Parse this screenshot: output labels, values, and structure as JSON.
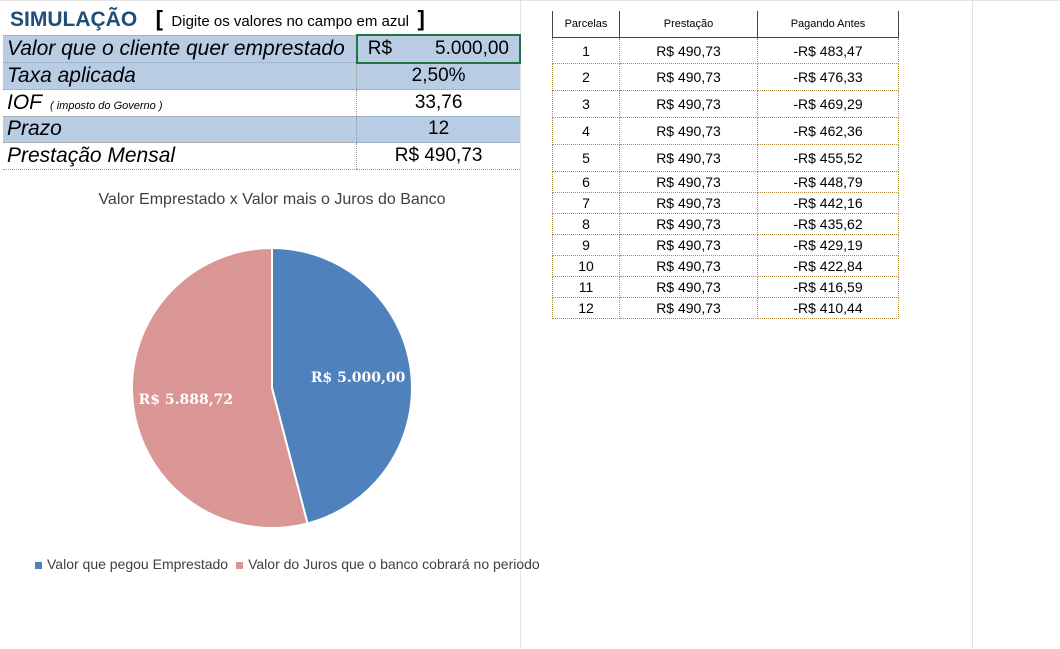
{
  "header": {
    "title": "SIMULAÇÃO",
    "bracket_open": "[",
    "instruction": "Digite os valores no campo em azul",
    "bracket_close": "]"
  },
  "simulation": {
    "rows": [
      {
        "label": "Valor que o cliente quer emprestado",
        "currency": "R$",
        "value": "5.000,00"
      },
      {
        "label": "Taxa aplicada",
        "value": "2,50%"
      },
      {
        "label": "IOF",
        "note": "( imposto do Governo )",
        "value": "33,76"
      },
      {
        "label": "Prazo",
        "value": "12"
      },
      {
        "label": "Prestação Mensal",
        "value": "R$ 490,73"
      }
    ]
  },
  "installments": {
    "headers": [
      "Parcelas",
      "Prestação",
      "Pagando Antes"
    ],
    "rows": [
      [
        "1",
        "R$ 490,73",
        "-R$ 483,47"
      ],
      [
        "2",
        "R$ 490,73",
        "-R$ 476,33"
      ],
      [
        "3",
        "R$ 490,73",
        "-R$ 469,29"
      ],
      [
        "4",
        "R$ 490,73",
        "-R$ 462,36"
      ],
      [
        "5",
        "R$ 490,73",
        "-R$ 455,52"
      ],
      [
        "6",
        "R$ 490,73",
        "-R$ 448,79"
      ],
      [
        "7",
        "R$ 490,73",
        "-R$ 442,16"
      ],
      [
        "8",
        "R$ 490,73",
        "-R$ 435,62"
      ],
      [
        "9",
        "R$ 490,73",
        "-R$ 429,19"
      ],
      [
        "10",
        "R$ 490,73",
        "-R$ 422,84"
      ],
      [
        "11",
        "R$ 490,73",
        "-R$ 416,59"
      ],
      [
        "12",
        "R$ 490,73",
        "-R$ 410,44"
      ]
    ]
  },
  "chart_data": {
    "type": "pie",
    "title": "Valor Emprestado x Valor mais o Juros do Banco",
    "categories": [
      "Valor que pegou Emprestado",
      "Valor do Juros que o banco cobrará no periodo"
    ],
    "values": [
      5000.0,
      5888.72
    ],
    "labels": [
      "R$ 5.000,00",
      "R$ 5.888,72"
    ],
    "colors": [
      "#4f81bd",
      "#d99694"
    ],
    "legend_position": "bottom"
  }
}
